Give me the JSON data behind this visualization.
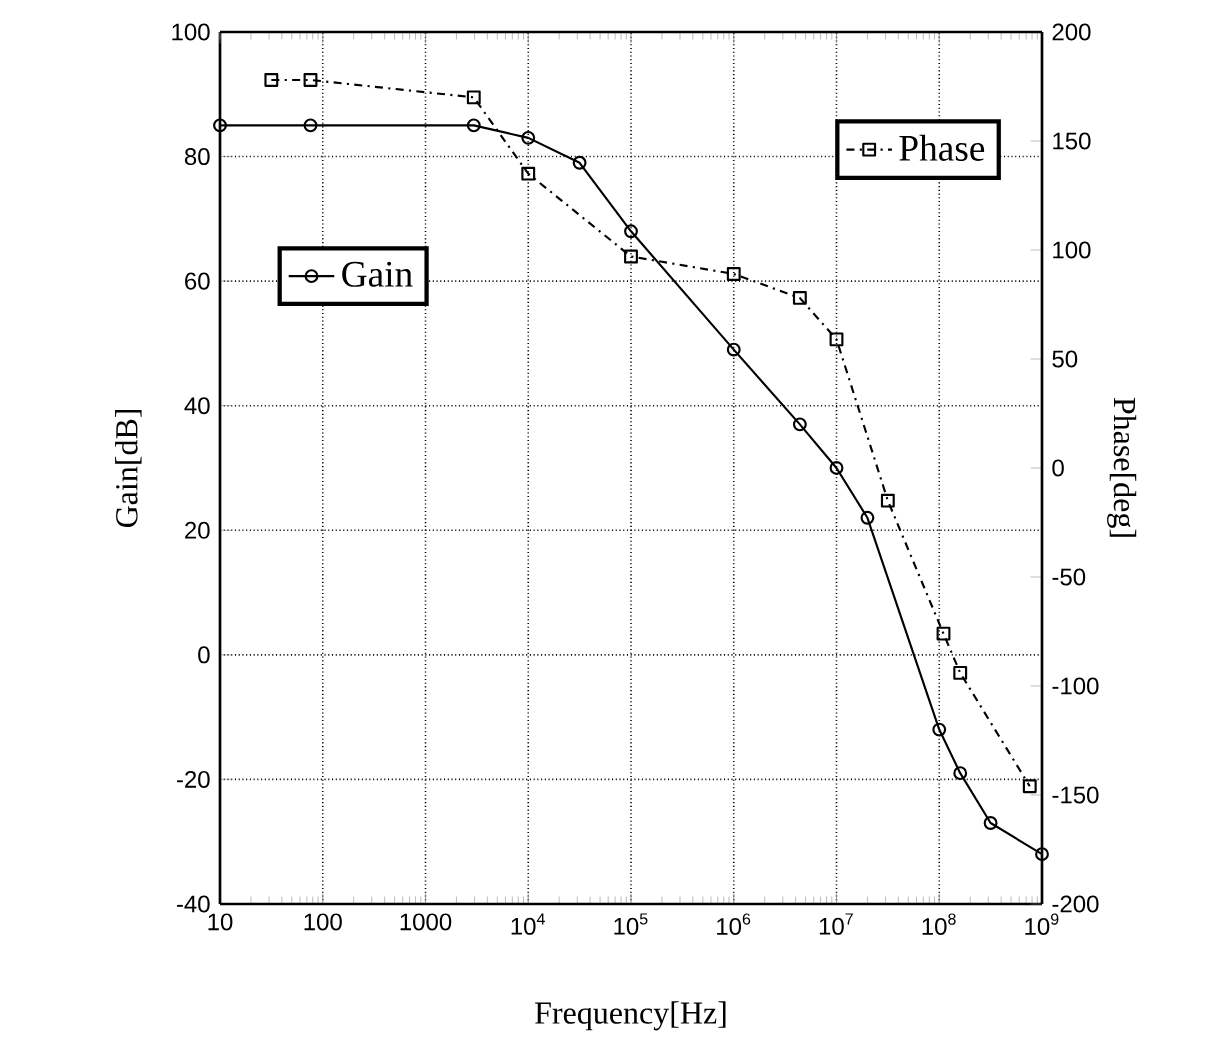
{
  "chart_data": {
    "type": "line",
    "xlabel": "Frequency[Hz]",
    "ylabel": "Gain[dB]",
    "y2label": "Phase[deg]",
    "log": "x",
    "x": [
      10,
      76,
      2950,
      10000,
      31600,
      100000,
      1000000,
      4400000,
      10000000,
      20000000,
      100000000,
      160000000,
      316000000,
      1000000000
    ],
    "series": [
      {
        "name": "Gain",
        "color": "#000000",
        "marker": "circle",
        "line_style": "solid",
        "values": [
          85,
          85,
          85,
          83,
          79,
          68,
          49,
          37,
          30,
          22,
          -12,
          -19,
          -27,
          -32
        ]
      },
      {
        "name": "Phase",
        "color": "#000000",
        "marker": "square",
        "line_style": "dashed",
        "axis": "y2",
        "x": [
          31.6,
          76,
          2950,
          10000,
          100000,
          1000000,
          4400000,
          10000000,
          31600000,
          110000000,
          160000000,
          760000000
        ],
        "values": [
          178,
          178,
          170,
          135,
          97,
          89,
          78,
          59,
          -15,
          -76,
          -94,
          -146
        ]
      }
    ],
    "xlim": [
      10,
      1000000000
    ],
    "xticks": [
      10,
      100,
      1000,
      {
        "value": 10000,
        "label": "10$^{4}$"
      },
      {
        "value": 100000,
        "label": "10$^{5}$"
      },
      {
        "value": 1000000,
        "label": "10$^{6}$"
      },
      {
        "value": 10000000,
        "label": "10$^{7}$"
      },
      {
        "value": 100000000,
        "label": "10$^{8}$"
      },
      {
        "value": 1000000000,
        "label": "10$^{9}$"
      }
    ],
    "ylim": [
      -40,
      100
    ],
    "yticks": [
      -40,
      -20,
      0,
      20,
      40,
      60,
      80,
      100
    ],
    "y2lim": [
      -200,
      200
    ],
    "y2ticks": [
      -200,
      -150,
      -100,
      -50,
      0,
      50,
      100,
      150,
      200
    ],
    "grid": true,
    "legend": "top right"
  }
}
